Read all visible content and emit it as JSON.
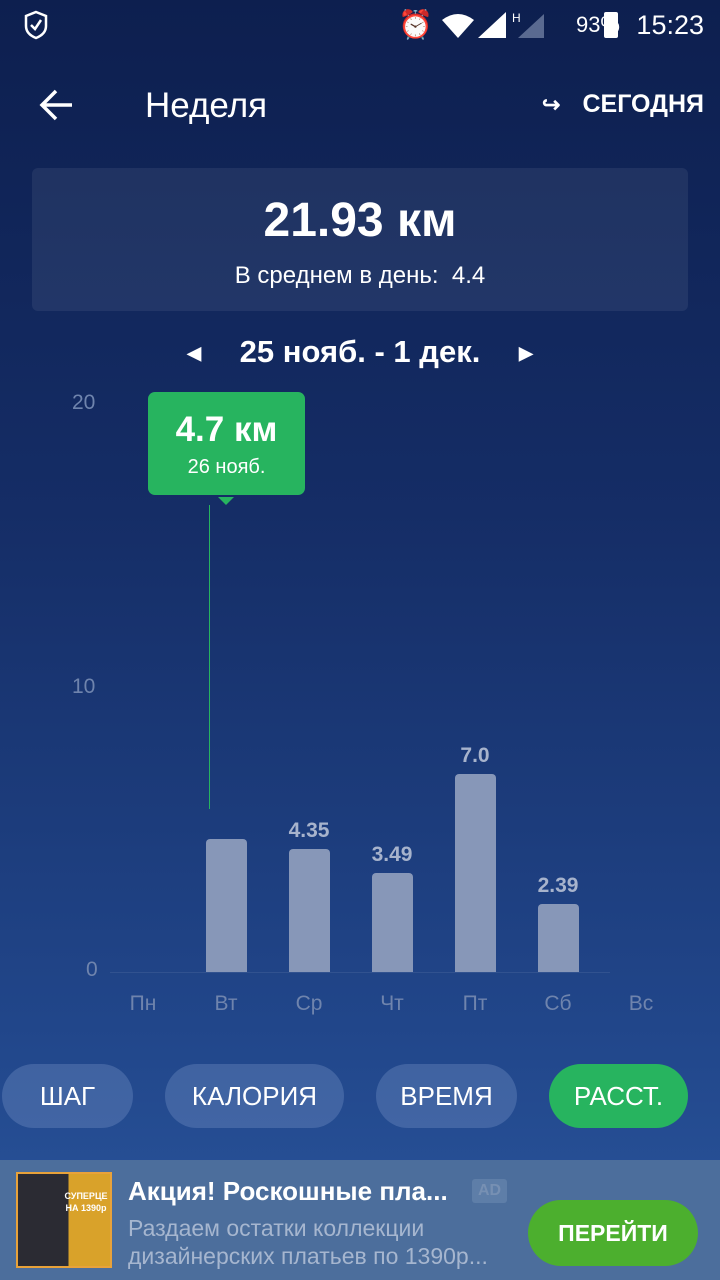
{
  "status": {
    "battery": "93%",
    "time": "15:23",
    "icons": [
      "shield-check-icon",
      "alarm-icon",
      "wifi-icon",
      "signal-icon",
      "signal-h-icon",
      "battery-icon"
    ]
  },
  "appbar": {
    "title": "Неделя",
    "today": "СЕГОДНЯ"
  },
  "summary": {
    "total": "21.93 км",
    "avg_label": "В среднем в день:",
    "avg_value": "4.4"
  },
  "range": {
    "label": "25 нояб. - 1 дек."
  },
  "tooltip": {
    "value": "4.7 км",
    "date": "26 нояб."
  },
  "chart_data": {
    "type": "bar",
    "categories": [
      "Пн",
      "Вт",
      "Ср",
      "Чт",
      "Пт",
      "Сб",
      "Вс"
    ],
    "values": [
      0,
      4.7,
      4.35,
      3.49,
      7.0,
      2.39,
      0
    ],
    "value_labels": [
      "",
      "",
      "4.35",
      "3.49",
      "7.0",
      "2.39",
      ""
    ],
    "yticks": [
      "0",
      "10",
      "20"
    ],
    "ylim": [
      0,
      20
    ],
    "bar_color": "#8797b8",
    "highlight_color": "#27b45f"
  },
  "tabs": [
    {
      "label": "ШАГ"
    },
    {
      "label": "КАЛОРИЯ"
    },
    {
      "label": "ВРЕМЯ"
    },
    {
      "label": "РАССТ.",
      "active": true
    }
  ],
  "ad": {
    "title": "Акция! Роскошные пла...",
    "badge": "AD",
    "text1": "Раздаем остатки коллекции",
    "text2": "дизайнерских платьев по 1390р...",
    "cta": "ПЕРЕЙТИ",
    "image_text": "СУПЕРЦЕНА 1390р"
  }
}
